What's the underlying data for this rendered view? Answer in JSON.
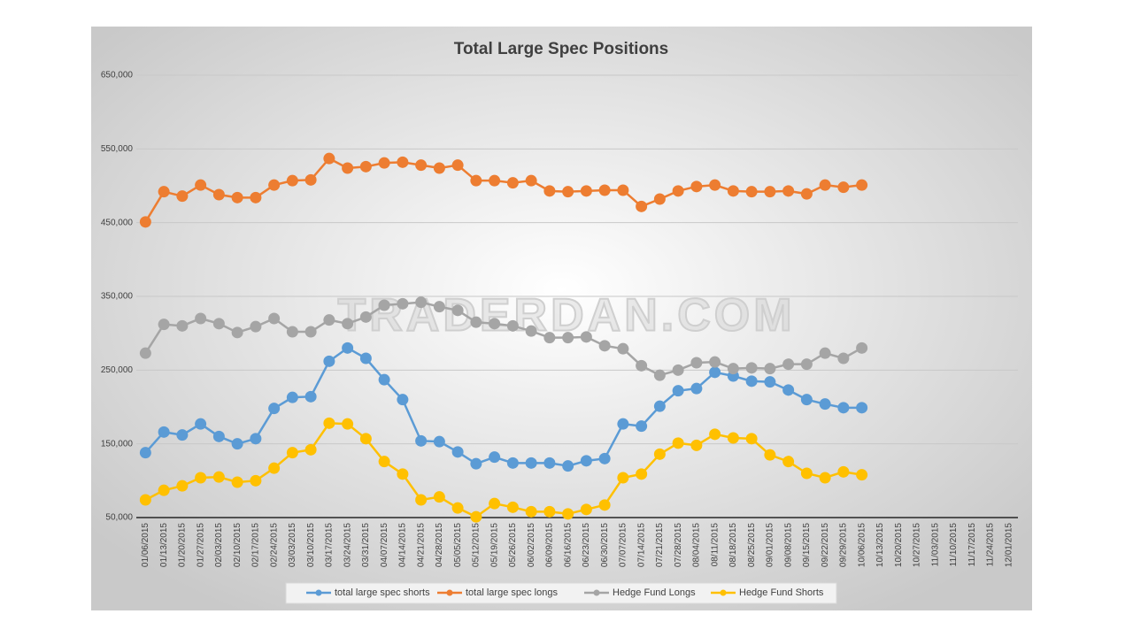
{
  "chart_data": {
    "type": "line",
    "title": "Total Large Spec Positions",
    "watermark": "TRADERDAN.COM",
    "categories": [
      "01/06/2015",
      "01/13/2015",
      "01/20/2015",
      "01/27/2015",
      "02/03/2015",
      "02/10/2015",
      "02/17/2015",
      "02/24/2015",
      "03/03/2015",
      "03/10/2015",
      "03/17/2015",
      "03/24/2015",
      "03/31/2015",
      "04/07/2015",
      "04/14/2015",
      "04/21/2015",
      "04/28/2015",
      "05/05/2015",
      "05/12/2015",
      "05/19/2015",
      "05/26/2015",
      "06/02/2015",
      "06/09/2015",
      "06/16/2015",
      "06/23/2015",
      "06/30/2015",
      "07/07/2015",
      "07/14/2015",
      "07/21/2015",
      "07/28/2015",
      "08/04/2015",
      "08/11/2015",
      "08/18/2015",
      "08/25/2015",
      "09/01/2015",
      "09/08/2015",
      "09/15/2015",
      "09/22/2015",
      "09/29/2015",
      "10/06/2015",
      "10/13/2015",
      "10/20/2015",
      "10/27/2015",
      "11/03/2015",
      "11/10/2015",
      "11/17/2015",
      "11/24/2015",
      "12/01/2015"
    ],
    "series": [
      {
        "name": "total large spec shorts",
        "color": "#5b9bd5",
        "values": [
          138000,
          166000,
          162000,
          177000,
          160000,
          150000,
          157000,
          198000,
          213000,
          214000,
          262000,
          280000,
          266000,
          237000,
          210000,
          154000,
          153000,
          139000,
          123000,
          132000,
          124000,
          124000,
          124000,
          120000,
          127000,
          130000,
          177000,
          174000,
          201000,
          222000,
          225000,
          247000,
          242000,
          235000,
          234000,
          223000,
          210000,
          204000,
          199000,
          199000,
          null,
          null,
          null,
          null,
          null,
          null,
          null,
          null
        ]
      },
      {
        "name": "total large spec longs",
        "color": "#ed7d31",
        "values": [
          451000,
          492000,
          486000,
          501000,
          488000,
          484000,
          484000,
          501000,
          507000,
          508000,
          537000,
          524000,
          526000,
          531000,
          532000,
          528000,
          524000,
          528000,
          507000,
          507000,
          504000,
          507000,
          493000,
          492000,
          493000,
          494000,
          494000,
          472000,
          482000,
          493000,
          499000,
          501000,
          493000,
          492000,
          492000,
          493000,
          489000,
          501000,
          498000,
          501000,
          null,
          null,
          null,
          null,
          null,
          null,
          null,
          null
        ]
      },
      {
        "name": "Hedge Fund Longs",
        "color": "#a5a5a5",
        "values": [
          273000,
          312000,
          310000,
          320000,
          313000,
          301000,
          309000,
          320000,
          302000,
          302000,
          318000,
          313000,
          322000,
          338000,
          340000,
          342000,
          336000,
          331000,
          315000,
          313000,
          310000,
          303000,
          294000,
          294000,
          295000,
          283000,
          279000,
          256000,
          243000,
          250000,
          260000,
          261000,
          252000,
          253000,
          252000,
          258000,
          258000,
          273000,
          266000,
          280000,
          null,
          null,
          null,
          null,
          null,
          null,
          null,
          null
        ]
      },
      {
        "name": "Hedge Fund Shorts",
        "color": "#ffc000",
        "values": [
          74000,
          87000,
          93000,
          104000,
          105000,
          98000,
          100000,
          117000,
          138000,
          142000,
          178000,
          177000,
          157000,
          126000,
          109000,
          74000,
          78000,
          63000,
          51000,
          69000,
          64000,
          58000,
          58000,
          55000,
          61000,
          67000,
          104000,
          109000,
          136000,
          151000,
          148000,
          163000,
          158000,
          157000,
          135000,
          126000,
          110000,
          104000,
          112000,
          108000,
          null,
          null,
          null,
          null,
          null,
          null,
          null,
          null
        ]
      }
    ],
    "ylim": [
      50000,
      650000
    ],
    "yticks": [
      {
        "value": 50000,
        "label": "50,000"
      },
      {
        "value": 150000,
        "label": "150,000"
      },
      {
        "value": 250000,
        "label": "250,000"
      },
      {
        "value": 350000,
        "label": "350,000"
      },
      {
        "value": 450000,
        "label": "450,000"
      },
      {
        "value": 550000,
        "label": "550,000"
      },
      {
        "value": 650000,
        "label": "650,000"
      }
    ],
    "grid": true,
    "legend": "bottom"
  }
}
